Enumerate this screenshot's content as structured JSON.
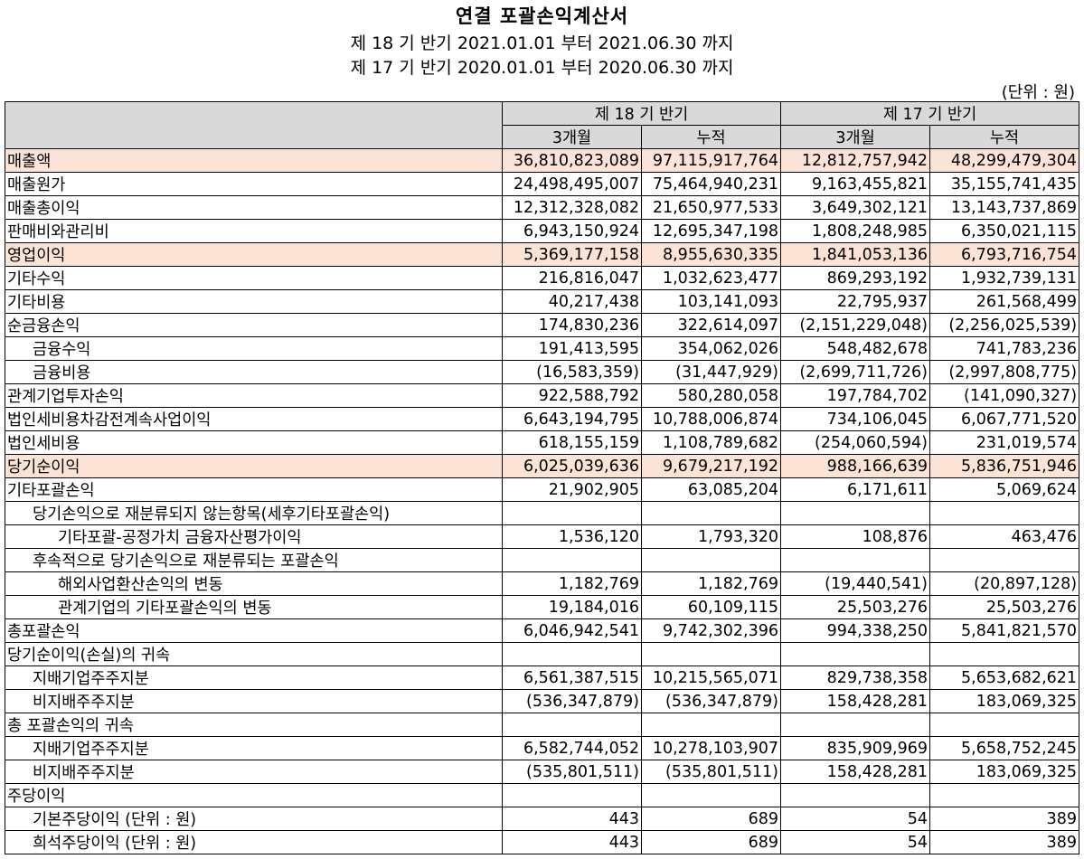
{
  "header": {
    "title": "연결 포괄손익계산서",
    "period_current": "제 18 기 반기 2021.01.01 부터 2021.06.30 까지",
    "period_prior": "제 17 기 반기 2020.01.01 부터 2020.06.30 까지",
    "unit": "(단위 : 원)"
  },
  "columns": {
    "group_current": "제 18 기 반기",
    "group_prior": "제 17 기 반기",
    "three_month": "3개월",
    "cumulative": "누적"
  },
  "rows": [
    {
      "label": "매출액",
      "indent": 0,
      "highlight": true,
      "values": [
        "36,810,823,089",
        "97,115,917,764",
        "12,812,757,942",
        "48,299,479,304"
      ]
    },
    {
      "label": "매출원가",
      "indent": 0,
      "highlight": false,
      "values": [
        "24,498,495,007",
        "75,464,940,231",
        "9,163,455,821",
        "35,155,741,435"
      ]
    },
    {
      "label": "매출총이익",
      "indent": 0,
      "highlight": false,
      "values": [
        "12,312,328,082",
        "21,650,977,533",
        "3,649,302,121",
        "13,143,737,869"
      ]
    },
    {
      "label": "판매비와관리비",
      "indent": 0,
      "highlight": false,
      "values": [
        "6,943,150,924",
        "12,695,347,198",
        "1,808,248,985",
        "6,350,021,115"
      ]
    },
    {
      "label": "영업이익",
      "indent": 0,
      "highlight": true,
      "values": [
        "5,369,177,158",
        "8,955,630,335",
        "1,841,053,136",
        "6,793,716,754"
      ]
    },
    {
      "label": "기타수익",
      "indent": 0,
      "highlight": false,
      "values": [
        "216,816,047",
        "1,032,623,477",
        "869,293,192",
        "1,932,739,131"
      ]
    },
    {
      "label": "기타비용",
      "indent": 0,
      "highlight": false,
      "values": [
        "40,217,438",
        "103,141,093",
        "22,795,937",
        "261,568,499"
      ]
    },
    {
      "label": "순금융손익",
      "indent": 0,
      "highlight": false,
      "values": [
        "174,830,236",
        "322,614,097",
        "(2,151,229,048)",
        "(2,256,025,539)"
      ]
    },
    {
      "label": "금융수익",
      "indent": 1,
      "highlight": false,
      "values": [
        "191,413,595",
        "354,062,026",
        "548,482,678",
        "741,783,236"
      ]
    },
    {
      "label": "금융비용",
      "indent": 1,
      "highlight": false,
      "values": [
        "(16,583,359)",
        "(31,447,929)",
        "(2,699,711,726)",
        "(2,997,808,775)"
      ]
    },
    {
      "label": "관계기업투자손익",
      "indent": 0,
      "highlight": false,
      "values": [
        "922,588,792",
        "580,280,058",
        "197,784,702",
        "(141,090,327)"
      ]
    },
    {
      "label": "법인세비용차감전계속사업이익",
      "indent": 0,
      "highlight": false,
      "values": [
        "6,643,194,795",
        "10,788,006,874",
        "734,106,045",
        "6,067,771,520"
      ]
    },
    {
      "label": "법인세비용",
      "indent": 0,
      "highlight": false,
      "values": [
        "618,155,159",
        "1,108,789,682",
        "(254,060,594)",
        "231,019,574"
      ]
    },
    {
      "label": "당기순이익",
      "indent": 0,
      "highlight": true,
      "values": [
        "6,025,039,636",
        "9,679,217,192",
        "988,166,639",
        "5,836,751,946"
      ]
    },
    {
      "label": "기타포괄손익",
      "indent": 0,
      "highlight": false,
      "values": [
        "21,902,905",
        "63,085,204",
        "6,171,611",
        "5,069,624"
      ]
    },
    {
      "label": "당기손익으로 재분류되지 않는항목(세후기타포괄손익)",
      "indent": 1,
      "highlight": false,
      "values": [
        "",
        "",
        "",
        ""
      ]
    },
    {
      "label": "기타포괄-공정가치 금융자산평가이익",
      "indent": 2,
      "highlight": false,
      "values": [
        "1,536,120",
        "1,793,320",
        "108,876",
        "463,476"
      ]
    },
    {
      "label": "후속적으로 당기손익으로 재분류되는 포괄손익",
      "indent": 1,
      "highlight": false,
      "values": [
        "",
        "",
        "",
        ""
      ]
    },
    {
      "label": "해외사업환산손익의 변동",
      "indent": 2,
      "highlight": false,
      "values": [
        "1,182,769",
        "1,182,769",
        "(19,440,541)",
        "(20,897,128)"
      ]
    },
    {
      "label": "관계기업의 기타포괄손익의 변동",
      "indent": 2,
      "highlight": false,
      "values": [
        "19,184,016",
        "60,109,115",
        "25,503,276",
        "25,503,276"
      ]
    },
    {
      "label": "총포괄손익",
      "indent": 0,
      "highlight": false,
      "values": [
        "6,046,942,541",
        "9,742,302,396",
        "994,338,250",
        "5,841,821,570"
      ]
    },
    {
      "label": "당기순이익(손실)의 귀속",
      "indent": 0,
      "highlight": false,
      "values": [
        "",
        "",
        "",
        ""
      ]
    },
    {
      "label": "지배기업주주지분",
      "indent": 1,
      "highlight": false,
      "values": [
        "6,561,387,515",
        "10,215,565,071",
        "829,738,358",
        "5,653,682,621"
      ]
    },
    {
      "label": "비지배주주지분",
      "indent": 1,
      "highlight": false,
      "values": [
        "(536,347,879)",
        "(536,347,879)",
        "158,428,281",
        "183,069,325"
      ]
    },
    {
      "label": "총 포괄손익의 귀속",
      "indent": 0,
      "highlight": false,
      "values": [
        "",
        "",
        "",
        ""
      ]
    },
    {
      "label": "지배기업주주지분",
      "indent": 1,
      "highlight": false,
      "values": [
        "6,582,744,052",
        "10,278,103,907",
        "835,909,969",
        "5,658,752,245"
      ]
    },
    {
      "label": "비지배주주지분",
      "indent": 1,
      "highlight": false,
      "values": [
        "(535,801,511)",
        "(535,801,511)",
        "158,428,281",
        "183,069,325"
      ]
    },
    {
      "label": "주당이익",
      "indent": 0,
      "highlight": false,
      "values": [
        "",
        "",
        "",
        ""
      ]
    },
    {
      "label": "기본주당이익 (단위 : 원)",
      "indent": 1,
      "highlight": false,
      "values": [
        "443",
        "689",
        "54",
        "389"
      ]
    },
    {
      "label": "희석주당이익 (단위 : 원)",
      "indent": 1,
      "highlight": false,
      "values": [
        "443",
        "689",
        "54",
        "389"
      ]
    }
  ]
}
